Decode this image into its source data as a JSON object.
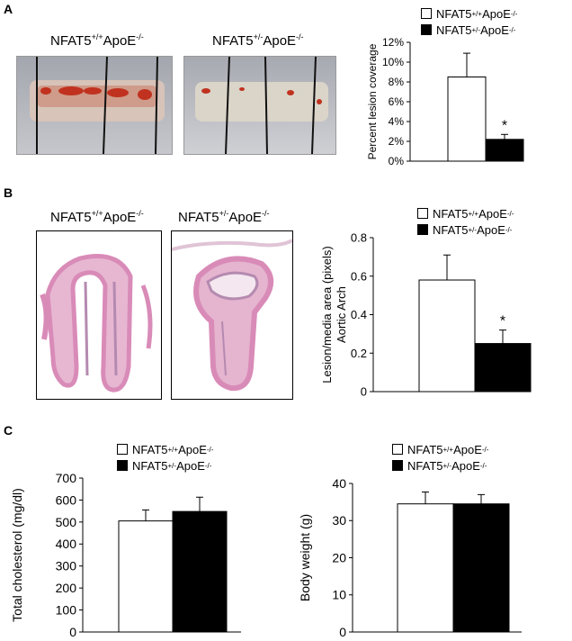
{
  "panels": {
    "a": {
      "letter": "A",
      "img_left": {
        "base": "NFAT5",
        "sup1": "+/+",
        "mid": "ApoE",
        "sup2": "-/-"
      },
      "img_right": {
        "base": "NFAT5",
        "sup1": "+/-",
        "mid": "ApoE",
        "sup2": "-/-"
      }
    },
    "b": {
      "letter": "B",
      "img_left": {
        "base": "NFAT5",
        "sup1": "+/+",
        "mid": "ApoE",
        "sup2": "-/-"
      },
      "img_right": {
        "base": "NFAT5",
        "sup1": "+/-",
        "mid": "ApoE",
        "sup2": "-/-"
      }
    },
    "c": {
      "letter": "C"
    }
  },
  "legend": {
    "wt": {
      "base": "NFAT5",
      "sup1": "+/+",
      "mid": "ApoE",
      "sup2": "-/-"
    },
    "het": {
      "base": "NFAT5",
      "sup1": "+/-",
      "mid": "ApoE",
      "sup2": "-/-"
    }
  },
  "colors": {
    "wt_fill": "#ffffff",
    "het_fill": "#000000",
    "stain_red": "#c0321f",
    "he_pink": "#d98bb8"
  },
  "chart_data": [
    {
      "id": "a",
      "type": "bar",
      "categories": [
        "NFAT5+/+ApoE-/-",
        "NFAT5+/-ApoE-/-"
      ],
      "values": [
        8.5,
        2.2
      ],
      "errors": [
        2.4,
        0.5
      ],
      "significance": [
        "",
        "*"
      ],
      "ylabel": "Percent lesion coverage",
      "ylim": [
        0,
        12
      ],
      "yticks": [
        "0%",
        "2%",
        "4%",
        "6%",
        "8%",
        "10%",
        "12%"
      ],
      "tick_values": [
        0,
        2,
        4,
        6,
        8,
        10,
        12
      ]
    },
    {
      "id": "b",
      "type": "bar",
      "categories": [
        "NFAT5+/+ApoE-/-",
        "NFAT5+/-ApoE-/-"
      ],
      "values": [
        0.58,
        0.25
      ],
      "errors": [
        0.13,
        0.07
      ],
      "significance": [
        "",
        "*"
      ],
      "ylabel": "Lesion/media area (pixels)",
      "ylabel2": "Aortic Arch",
      "ylim": [
        0,
        0.8
      ],
      "yticks": [
        "0",
        "0.2",
        "0.4",
        "0.6",
        "0.8"
      ],
      "tick_values": [
        0,
        0.2,
        0.4,
        0.6,
        0.8
      ]
    },
    {
      "id": "c1",
      "type": "bar",
      "categories": [
        "NFAT5+/+ApoE-/-",
        "NFAT5+/-ApoE-/-"
      ],
      "values": [
        505,
        548
      ],
      "errors": [
        50,
        65
      ],
      "significance": [
        "",
        ""
      ],
      "ylabel": "Total cholesterol (mg/dl)",
      "ylim": [
        0,
        700
      ],
      "yticks": [
        "0",
        "100",
        "200",
        "300",
        "400",
        "500",
        "600",
        "700"
      ],
      "tick_values": [
        0,
        100,
        200,
        300,
        400,
        500,
        600,
        700
      ]
    },
    {
      "id": "c2",
      "type": "bar",
      "categories": [
        "NFAT5+/+ApoE-/-",
        "NFAT5+/-ApoE-/-"
      ],
      "values": [
        34.5,
        34.5
      ],
      "errors": [
        3.2,
        2.5
      ],
      "significance": [
        "",
        ""
      ],
      "ylabel": "Body weight (g)",
      "ylim": [
        0,
        40
      ],
      "yticks": [
        "0",
        "10",
        "20",
        "30",
        "40"
      ],
      "tick_values": [
        0,
        10,
        20,
        30,
        40
      ]
    }
  ]
}
